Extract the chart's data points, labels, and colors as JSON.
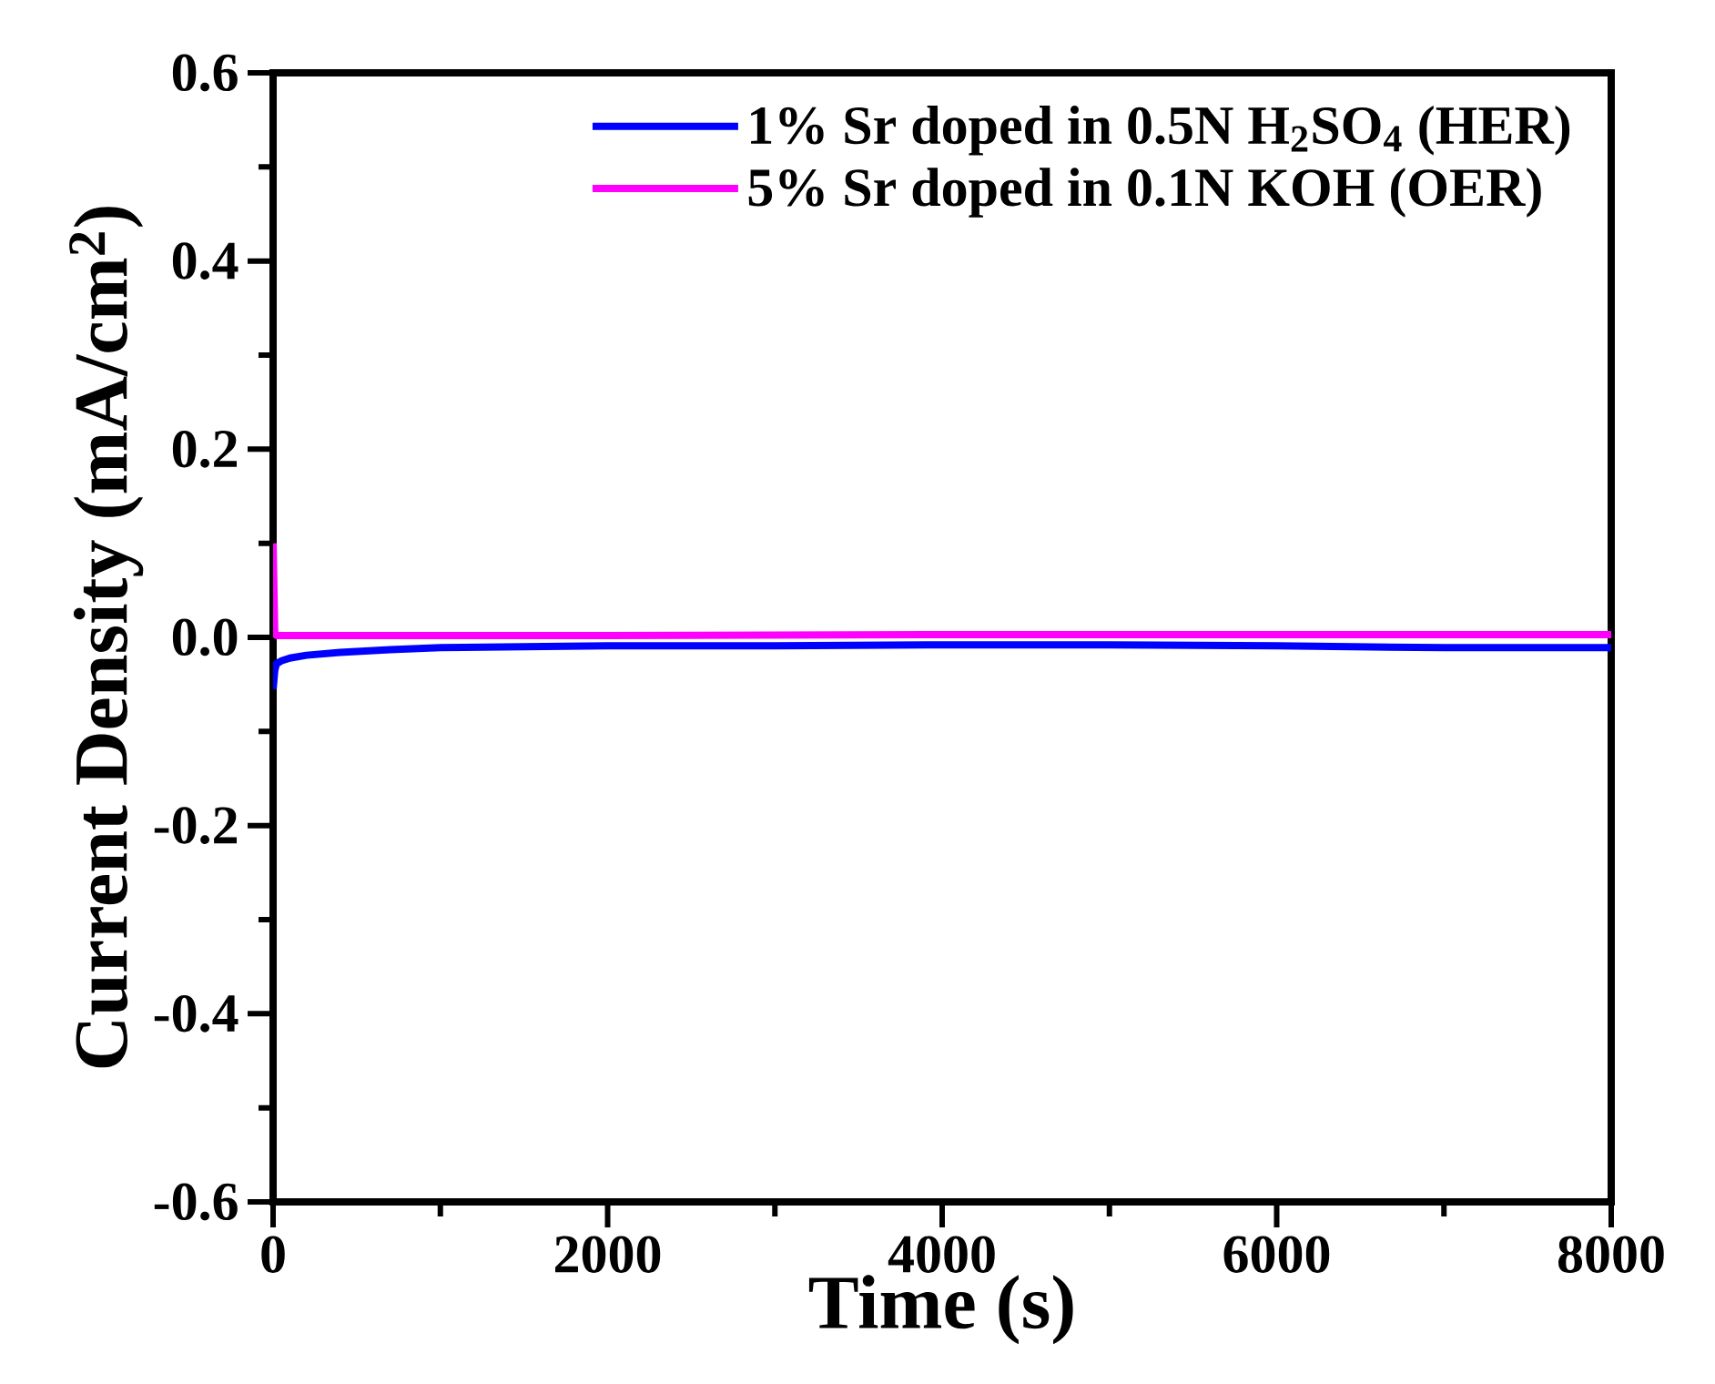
{
  "chart_data": {
    "type": "line",
    "xlabel": "Time (s)",
    "ylabel": "Current Density (mA/cm$^{2}$)",
    "xlim": [
      0,
      8000
    ],
    "ylim": [
      -0.6,
      0.6
    ],
    "xticks": [
      0,
      2000,
      4000,
      6000,
      8000
    ],
    "yticks": [
      {
        "value": -0.6,
        "label": "-0.6"
      },
      {
        "value": -0.4,
        "label": "-0.4"
      },
      {
        "value": -0.2,
        "label": "-0.2"
      },
      {
        "value": 0,
        "label": "0.0"
      },
      {
        "value": 0.2,
        "label": "0.2"
      },
      {
        "value": 0.4,
        "label": "0.4"
      },
      {
        "value": 0.6,
        "label": "0.6"
      }
    ],
    "grid": false,
    "legend": "top right",
    "marker": "none",
    "line_style": "solid",
    "series": [
      {
        "name": "1% Sr doped in 0.5N H$_{2}$SO$_{4}$ (HER)",
        "color": "#0000ff",
        "x": [
          0,
          10,
          20,
          50,
          100,
          200,
          400,
          700,
          1000,
          1500,
          2000,
          3000,
          4000,
          5000,
          6000,
          7000,
          8000
        ],
        "values": [
          -0.055,
          -0.035,
          -0.028,
          -0.025,
          -0.022,
          -0.019,
          -0.016,
          -0.013,
          -0.011,
          -0.01,
          -0.009,
          -0.009,
          -0.008,
          -0.008,
          -0.009,
          -0.011,
          -0.011
        ]
      },
      {
        "name": "5% Sr doped in 0.1N KOH (OER)",
        "color": "#ff00ff",
        "x": [
          0,
          10,
          20,
          500,
          1000,
          2000,
          4000,
          6000,
          8000
        ],
        "values": [
          0.1,
          0.004,
          0.002,
          0.002,
          0.002,
          0.002,
          0.003,
          0.003,
          0.003
        ]
      }
    ]
  }
}
